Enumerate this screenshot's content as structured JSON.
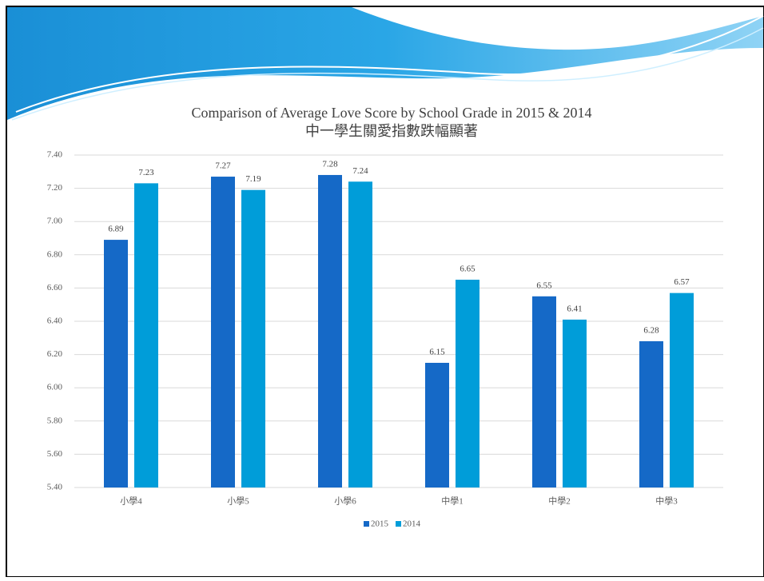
{
  "chart_data": {
    "type": "bar",
    "title": "Comparison of Average Love Score by School Grade in 2015 & 2014",
    "subtitle": "中一學生關愛指數跌幅顯著",
    "categories": [
      "小學4",
      "小學5",
      "小學6",
      "中學1",
      "中學2",
      "中學3"
    ],
    "series": [
      {
        "name": "2015",
        "color": "#1569c7",
        "values": [
          6.89,
          7.27,
          7.28,
          6.15,
          6.55,
          6.28
        ]
      },
      {
        "name": "2014",
        "color": "#009dd9",
        "values": [
          7.23,
          7.19,
          7.24,
          6.65,
          6.41,
          6.57
        ]
      }
    ],
    "ylim": [
      5.4,
      7.4
    ],
    "yticks": [
      {
        "value": 5.4,
        "label": "5.40"
      },
      {
        "value": 5.6,
        "label": "5.60"
      },
      {
        "value": 5.8,
        "label": "5.80"
      },
      {
        "value": 6.0,
        "label": "6.00"
      },
      {
        "value": 6.2,
        "label": "6.20"
      },
      {
        "value": 6.4,
        "label": "6.40"
      },
      {
        "value": 6.6,
        "label": "6.60"
      },
      {
        "value": 6.8,
        "label": "6.80"
      },
      {
        "value": 7.0,
        "label": "7.00"
      },
      {
        "value": 7.2,
        "label": "7.20"
      },
      {
        "value": 7.4,
        "label": "7.40"
      }
    ],
    "grid": true,
    "legend": "bottom"
  }
}
